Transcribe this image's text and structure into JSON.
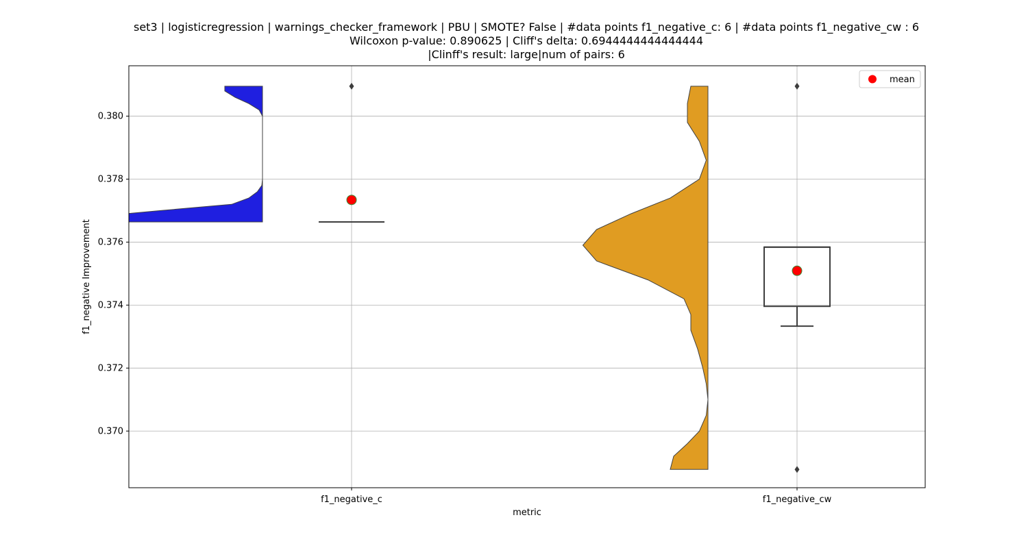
{
  "chart_data": {
    "type": "violin-box",
    "title_lines": [
      "set3 | logisticregression | warnings_checker_framework | PBU | SMOTE? False | #data points f1_negative_c: 6 | #data points f1_negative_cw : 6",
      "Wilcoxon p-value: 0.890625 | Cliff's delta: 0.6944444444444444",
      "|Clinff's result: large|num of pairs: 6"
    ],
    "xlabel": "metric",
    "ylabel": "f1_negative Improvement",
    "categories": [
      "f1_negative_c",
      "f1_negative_cw"
    ],
    "ylim": [
      0.3682,
      0.3816
    ],
    "yticks": [
      0.37,
      0.372,
      0.374,
      0.376,
      0.378,
      0.38
    ],
    "ytick_labels": [
      "0.370",
      "0.372",
      "0.374",
      "0.376",
      "0.378",
      "0.380"
    ],
    "grid": true,
    "legend": {
      "position": "top-right",
      "entries": [
        {
          "label": "mean",
          "color": "#ff0000"
        }
      ]
    },
    "series": [
      {
        "category": "f1_negative_c",
        "violin_color": "#1f1fe0",
        "density_extent": [
          0.37664,
          0.38095
        ],
        "density_profile": [
          [
            0.37664,
            1.0
          ],
          [
            0.3768,
            1.0
          ],
          [
            0.377,
            0.6
          ],
          [
            0.3772,
            0.18
          ],
          [
            0.3774,
            0.08
          ],
          [
            0.3776,
            0.03
          ],
          [
            0.3778,
            0.004
          ],
          [
            0.378,
            0.0
          ],
          [
            0.38,
            0.0
          ],
          [
            0.3802,
            0.02
          ],
          [
            0.3804,
            0.08
          ],
          [
            0.3806,
            0.16
          ],
          [
            0.3808,
            0.22
          ],
          [
            0.38095,
            0.22
          ]
        ],
        "box": {
          "q1": 0.37664,
          "median": 0.37664,
          "q3": 0.37664,
          "whisker_low": 0.37664,
          "whisker_high": 0.37664
        },
        "outliers": [
          0.38095
        ],
        "mean": 0.37734
      },
      {
        "category": "f1_negative_cw",
        "violin_color": "#e09c22",
        "density_extent": [
          0.36878,
          0.38095
        ],
        "density_profile": [
          [
            0.36878,
            0.22
          ],
          [
            0.3692,
            0.2
          ],
          [
            0.3696,
            0.12
          ],
          [
            0.37,
            0.05
          ],
          [
            0.3705,
            0.01
          ],
          [
            0.371,
            0.0
          ],
          [
            0.3715,
            0.01
          ],
          [
            0.372,
            0.03
          ],
          [
            0.3726,
            0.06
          ],
          [
            0.3732,
            0.1
          ],
          [
            0.3737,
            0.1
          ],
          [
            0.3742,
            0.14
          ],
          [
            0.3748,
            0.35
          ],
          [
            0.3754,
            0.65
          ],
          [
            0.3759,
            0.73
          ],
          [
            0.3764,
            0.65
          ],
          [
            0.3769,
            0.45
          ],
          [
            0.3774,
            0.22
          ],
          [
            0.378,
            0.05
          ],
          [
            0.3786,
            0.01
          ],
          [
            0.3792,
            0.05
          ],
          [
            0.3798,
            0.12
          ],
          [
            0.3804,
            0.12
          ],
          [
            0.38095,
            0.1
          ]
        ],
        "box": {
          "q1": 0.37396,
          "median": 0.37584,
          "q3": 0.37584,
          "whisker_low": 0.37333,
          "whisker_high": 0.37584
        },
        "outliers": [
          0.38095,
          0.36878
        ],
        "mean": 0.37509
      }
    ]
  }
}
